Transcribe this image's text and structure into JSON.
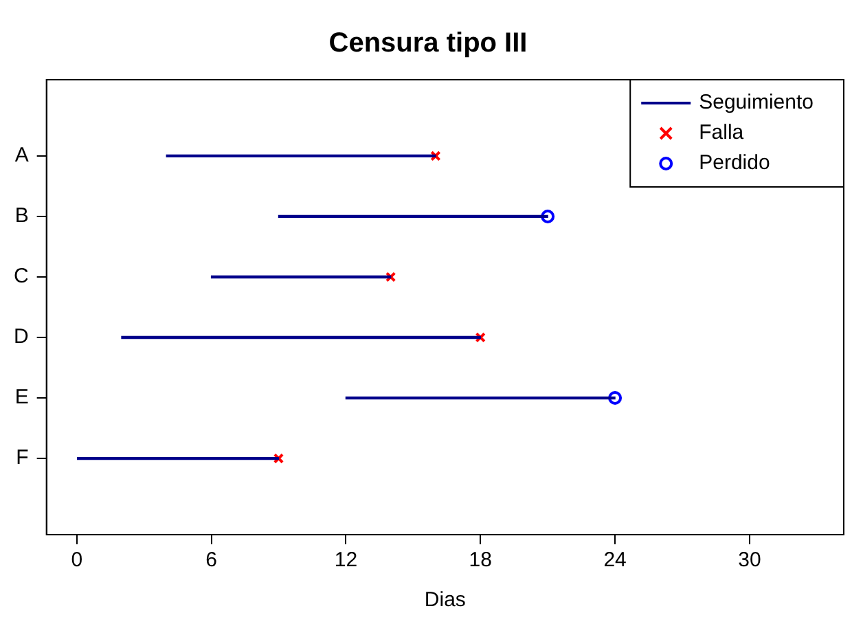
{
  "chart_data": {
    "type": "bar",
    "orientation": "horizontal",
    "title": "Censura tipo III",
    "xlabel": "Dias",
    "categories": [
      "A",
      "B",
      "C",
      "D",
      "E",
      "F"
    ],
    "series": [
      {
        "name": "Seguimiento",
        "color": "#00008b",
        "base": [
          4,
          9,
          6,
          2,
          12,
          0
        ],
        "values": [
          12,
          12,
          8,
          16,
          12,
          9
        ]
      },
      {
        "name": "Falla",
        "type": "scatter",
        "marker": "cross",
        "color": "#ff0000",
        "values": [
          16,
          null,
          14,
          18,
          null,
          9
        ]
      },
      {
        "name": "Perdido",
        "type": "scatter",
        "marker": "circle",
        "color": "#0000ff",
        "values": [
          null,
          21,
          null,
          null,
          24,
          null
        ]
      }
    ],
    "xlim": [
      -1.35,
      34.2
    ],
    "xticks": [
      0,
      6,
      12,
      18,
      24,
      30
    ],
    "grid": false,
    "legend": "top right"
  }
}
